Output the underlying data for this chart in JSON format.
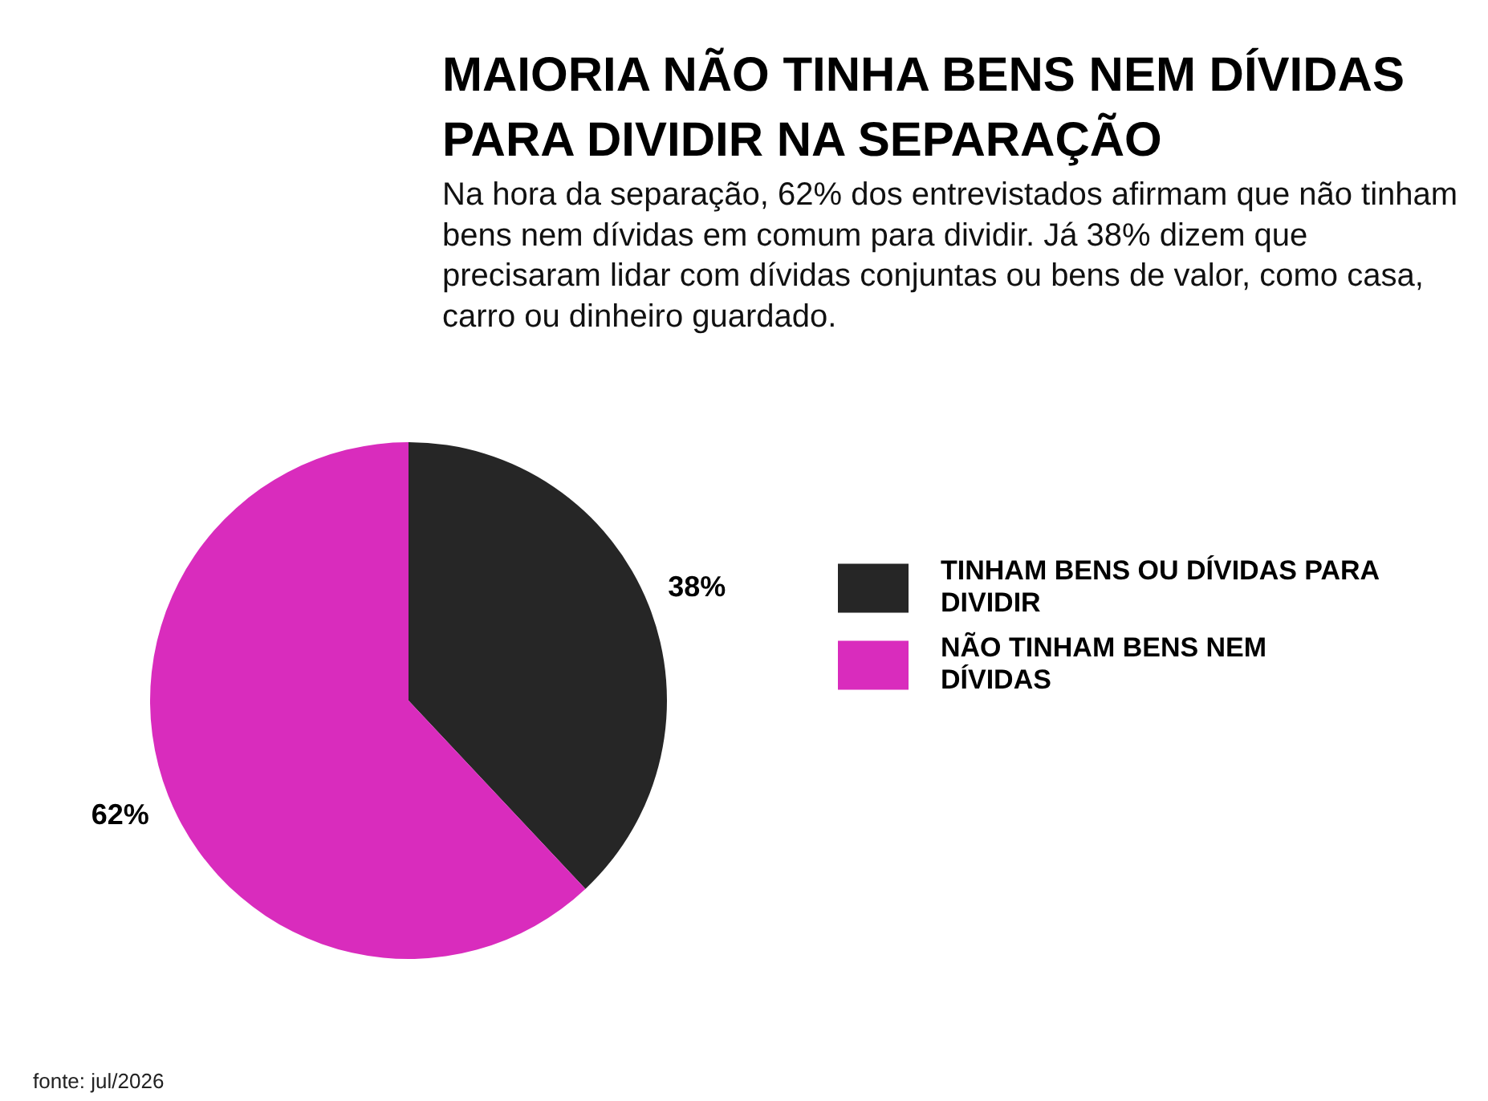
{
  "chart_data": {
    "type": "pie",
    "title": "MAIORIA NÃO TINHA BENS NEM DÍVIDAS PARA DIVIDIR NA SEPARAÇÃO",
    "subtitle": "Na hora da separação, 62% dos entrevistados afirmam que não tinham bens nem dívidas em comum para dividir. Já 38% dizem que precisaram lidar com dívidas conjuntas ou bens de valor, como casa, carro ou dinheiro guardado.",
    "categories": [
      "TINHAM BENS OU DÍVIDAS PARA DIVIDIR",
      "NÃO TINHAM BENS NEM DÍVIDAS"
    ],
    "values": [
      38,
      62
    ],
    "colors": [
      "#262626",
      "#d92cbd"
    ],
    "value_labels": [
      "38%",
      "62%"
    ],
    "legend": "right",
    "annotations": [
      "fonte: jul/2026"
    ]
  }
}
